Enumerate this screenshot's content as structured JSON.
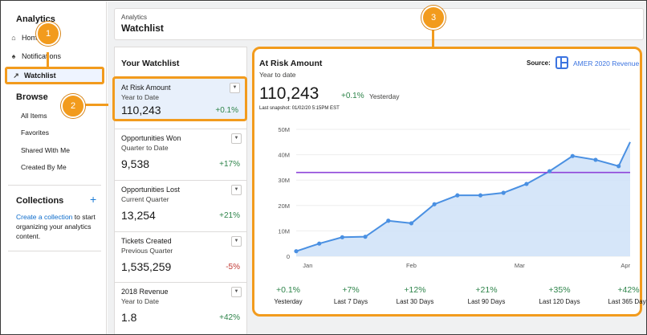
{
  "nav": {
    "title": "Analytics",
    "items": [
      {
        "label": "Home",
        "icon": "home-icon"
      },
      {
        "label": "Notifications",
        "icon": "bell-icon"
      },
      {
        "label": "Watchlist",
        "icon": "trend-icon"
      }
    ],
    "browse_title": "Browse",
    "browse_links": [
      "All Items",
      "Favorites",
      "Shared With Me",
      "Created By Me"
    ],
    "collections_title": "Collections",
    "collections_link": "Create a collection",
    "collections_text": " to start organizing your analytics content."
  },
  "header": {
    "breadcrumb": "Analytics",
    "title": "Watchlist"
  },
  "watchlist": {
    "title": "Your Watchlist",
    "cards": [
      {
        "name": "At Risk Amount",
        "period": "Year to Date",
        "value": "110,243",
        "change": "+0.1%",
        "trend": "pos"
      },
      {
        "name": "Opportunities Won",
        "period": "Quarter to Date",
        "value": "9,538",
        "change": "+17%",
        "trend": "pos"
      },
      {
        "name": "Opportunities Lost",
        "period": "Current Quarter",
        "value": "13,254",
        "change": "+21%",
        "trend": "pos"
      },
      {
        "name": "Tickets Created",
        "period": "Previous Quarter",
        "value": "1,535,259",
        "change": "-5%",
        "trend": "neg"
      },
      {
        "name": "2018 Revenue",
        "period": "Year to Date",
        "value": "1.8",
        "change": "+42%",
        "trend": "pos"
      }
    ]
  },
  "detail": {
    "title": "At Risk Amount",
    "subtitle": "Year to date",
    "value": "110,243",
    "change": "+0.1%",
    "change_label": "Yesterday",
    "snapshot": "Last snapshot: 01/02/20 5:15PM EST",
    "source_label": "Source:",
    "source_value": "AMER 2020 Revenue",
    "stats": [
      {
        "value": "+0.1%",
        "label": "Yesterday"
      },
      {
        "value": "+7%",
        "label": "Last 7 Days"
      },
      {
        "value": "+12%",
        "label": "Last 30 Days"
      },
      {
        "value": "+21%",
        "label": "Last 90 Days"
      },
      {
        "value": "+35%",
        "label": "Last 120 Days"
      },
      {
        "value": "+42%",
        "label": "Last 365 Days"
      }
    ]
  },
  "callouts": [
    "1",
    "2",
    "3"
  ],
  "colors": {
    "accent": "#f29b1d",
    "line": "#4a90e2",
    "target": "#8e44d9",
    "positive": "#2e844a",
    "negative": "#c23934"
  },
  "chart_data": {
    "type": "area",
    "title": "",
    "xlabel": "",
    "ylabel": "",
    "x_ticks": [
      "Jan",
      "Feb",
      "Mar",
      "Apr"
    ],
    "y_ticks": [
      "0",
      "10M",
      "20M",
      "30M",
      "40M",
      "50M"
    ],
    "ylim": [
      0,
      50
    ],
    "y_unit": "$M",
    "x_range": [
      0,
      14
    ],
    "series": [
      {
        "x": [
          0,
          1,
          2,
          3,
          4,
          5,
          6,
          7,
          8,
          9,
          10,
          11,
          12,
          13,
          14
        ],
        "values": [
          2,
          5,
          7.5,
          7.7,
          14,
          13,
          20.5,
          24,
          24,
          25,
          28.5,
          33.5,
          39.5,
          38,
          35.5
        ]
      }
    ],
    "series_end": {
      "x": 14.5,
      "y": 45
    },
    "target_line": 33,
    "grid": true
  }
}
